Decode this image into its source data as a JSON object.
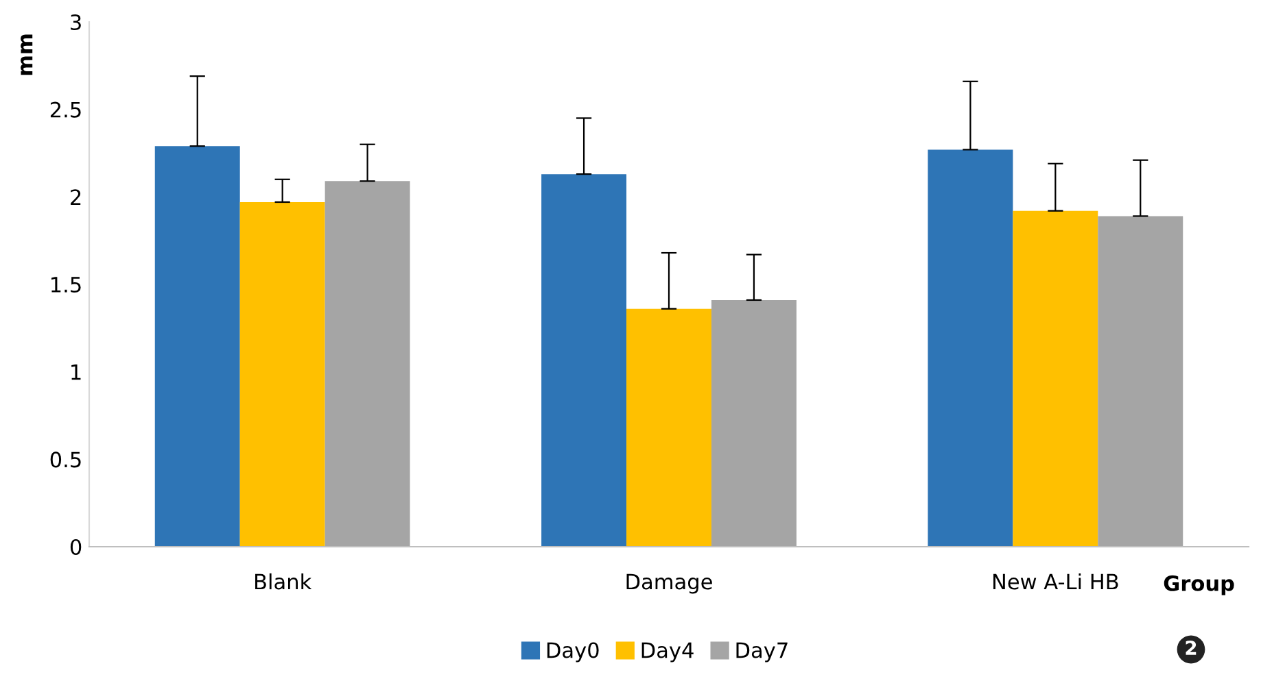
{
  "chart_data": {
    "type": "bar",
    "ylabel": "mm",
    "xlabel": "Group",
    "categories": [
      "Blank",
      "Damage",
      "New A-Li HB"
    ],
    "series": [
      {
        "name": "Day0",
        "color": "#2e75b6",
        "values": [
          2.29,
          2.13,
          2.27
        ],
        "errors": [
          [
            2.29,
            2.69
          ],
          [
            2.13,
            2.45
          ],
          [
            2.27,
            2.66
          ]
        ]
      },
      {
        "name": "Day4",
        "color": "#ffc000",
        "values": [
          1.97,
          1.36,
          1.92
        ],
        "errors": [
          [
            1.97,
            2.1
          ],
          [
            1.36,
            1.68
          ],
          [
            1.92,
            2.19
          ]
        ]
      },
      {
        "name": "Day7",
        "color": "#a5a5a5",
        "values": [
          2.09,
          1.41,
          1.89
        ],
        "errors": [
          [
            2.09,
            2.3
          ],
          [
            1.41,
            1.67
          ],
          [
            1.89,
            2.21
          ]
        ]
      }
    ],
    "ylim": [
      0,
      3
    ],
    "yticks": [
      0,
      0.5,
      1,
      1.5,
      2,
      2.5,
      3
    ],
    "grid": false,
    "legend": "bottom",
    "annotations": [
      "2"
    ]
  }
}
